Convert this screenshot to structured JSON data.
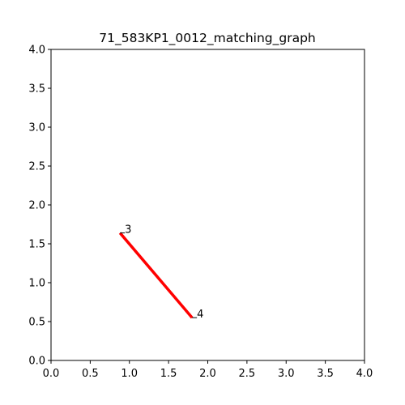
{
  "chart_data": {
    "type": "line",
    "title": "71_583KP1_0012_matching_graph",
    "xlabel": "",
    "ylabel": "",
    "xlim": [
      0,
      4
    ],
    "ylim": [
      0,
      4
    ],
    "grid": false,
    "x_ticks": [
      0,
      0.5,
      1,
      1.5,
      2,
      2.5,
      3,
      3.5,
      4
    ],
    "y_ticks": [
      0,
      0.5,
      1,
      1.5,
      2,
      2.5,
      3,
      3.5,
      4
    ],
    "x_tick_labels": [
      "0.0",
      "0.5",
      "1.0",
      "1.5",
      "2.0",
      "2.5",
      "3.0",
      "3.5",
      "4.0"
    ],
    "y_tick_labels": [
      "0.0",
      "0.5",
      "1.0",
      "1.5",
      "2.0",
      "2.5",
      "3.0",
      "3.5",
      "4.0"
    ],
    "nodes": [
      {
        "label": "3",
        "x": 0.88,
        "y": 1.64
      },
      {
        "label": "4",
        "x": 1.8,
        "y": 0.55
      }
    ],
    "edges": [
      {
        "from": "3",
        "to": "4",
        "color": "#ff0000"
      }
    ],
    "edge_color": "#ff0000",
    "node_color": "#000000"
  }
}
